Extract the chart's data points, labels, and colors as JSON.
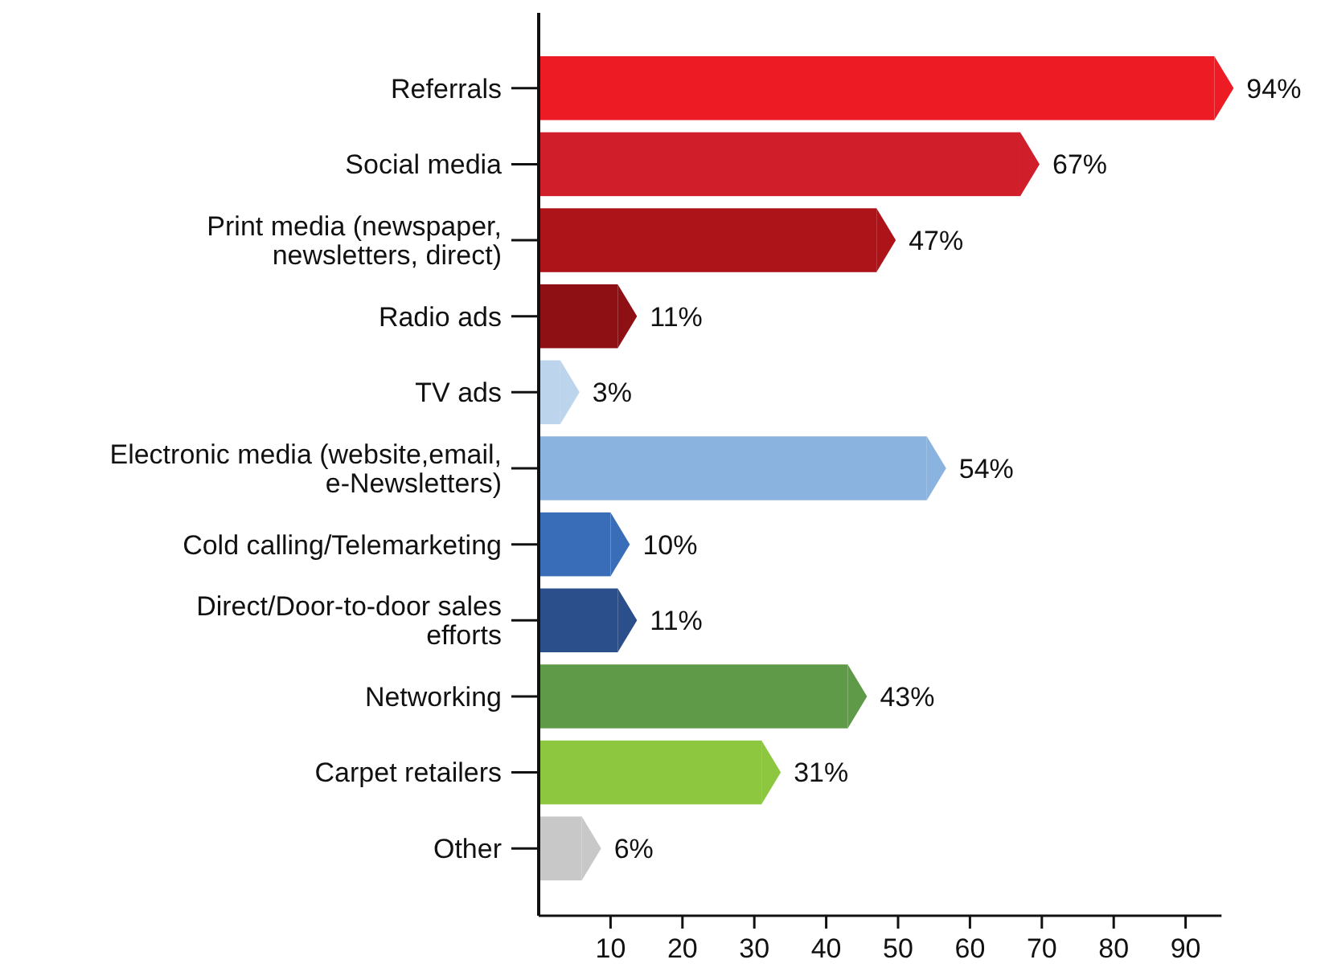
{
  "chart_data": {
    "type": "bar",
    "orientation": "horizontal",
    "categories": [
      "Referrals",
      "Social media",
      "Print media (newspaper, newsletters, direct)",
      "Radio ads",
      "TV ads",
      "Electronic media (website,email, e-Newsletters)",
      "Cold calling/Telemarketing",
      "Direct/Door-to-door sales efforts",
      "Networking",
      "Carpet retailers",
      "Other"
    ],
    "values": [
      94,
      67,
      47,
      11,
      3,
      54,
      10,
      11,
      43,
      31,
      6
    ],
    "colors": [
      "#ed1c24",
      "#d01f2a",
      "#ad1419",
      "#8e0f14",
      "#bcd4ec",
      "#8bb3e0",
      "#3a6db8",
      "#2a4f8a",
      "#5e9a48",
      "#8dc63f",
      "#c8c8c8"
    ],
    "value_labels": [
      "94%",
      "67%",
      "47%",
      "11%",
      "3%",
      "54%",
      "10%",
      "11%",
      "43%",
      "31%",
      "6%"
    ],
    "xlim": [
      0,
      95
    ],
    "xticks": [
      10,
      20,
      30,
      40,
      50,
      60,
      70,
      80,
      90
    ],
    "grid": false
  }
}
